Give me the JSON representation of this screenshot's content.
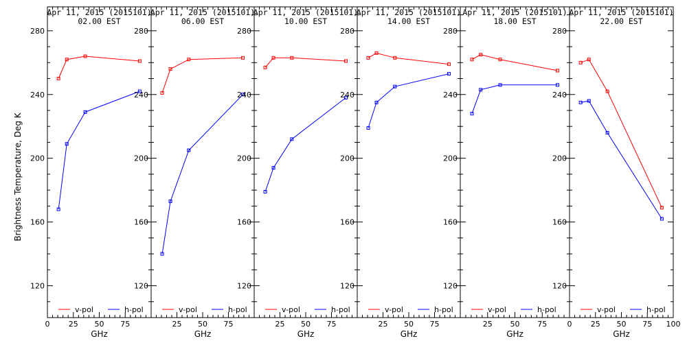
{
  "figure": {
    "ylabel": "Brightness Temperature, Deg K"
  },
  "chart_data": [
    {
      "type": "line",
      "title": "Apr 11, 2015 (2015101)",
      "subtitle": "02.00 EST",
      "xlabel": "GHz",
      "ylabel": "Brightness Temperature, Deg K",
      "xlim": [
        0,
        100
      ],
      "ylim": [
        100,
        295
      ],
      "x_ticks": [
        0,
        25,
        50,
        75
      ],
      "y_ticks": [
        120,
        160,
        200,
        240,
        280
      ],
      "legend": "bottom",
      "series": [
        {
          "name": "v-pol",
          "color": "#ff0000",
          "x": [
            10.7,
            18.7,
            36.5,
            89.0
          ],
          "y": [
            250,
            262,
            264,
            261
          ]
        },
        {
          "name": "h-pol",
          "color": "#0000ff",
          "x": [
            10.7,
            18.7,
            36.5,
            89.0
          ],
          "y": [
            168,
            209,
            229,
            242
          ]
        }
      ]
    },
    {
      "type": "line",
      "title": "Apr 11, 2015 (2015101)",
      "subtitle": "06.00 EST",
      "xlabel": "GHz",
      "ylabel": "",
      "xlim": [
        0,
        100
      ],
      "ylim": [
        100,
        295
      ],
      "x_ticks": [
        25,
        50,
        75
      ],
      "y_ticks": [
        120,
        160,
        200,
        240,
        280
      ],
      "legend": "bottom",
      "series": [
        {
          "name": "v-pol",
          "color": "#ff0000",
          "x": [
            10.7,
            18.7,
            36.5,
            89.0
          ],
          "y": [
            241,
            256,
            262,
            263
          ]
        },
        {
          "name": "h-pol",
          "color": "#0000ff",
          "x": [
            10.7,
            18.7,
            36.5,
            89.0
          ],
          "y": [
            140,
            173,
            205,
            240
          ]
        }
      ]
    },
    {
      "type": "line",
      "title": "Apr 11, 2015 (2015101)",
      "subtitle": "10.00 EST",
      "xlabel": "GHz",
      "ylabel": "",
      "xlim": [
        0,
        100
      ],
      "ylim": [
        100,
        295
      ],
      "x_ticks": [
        25,
        50,
        75
      ],
      "y_ticks": [
        120,
        160,
        200,
        240,
        280
      ],
      "legend": "bottom",
      "series": [
        {
          "name": "v-pol",
          "color": "#ff0000",
          "x": [
            10.7,
            18.7,
            36.5,
            89.0
          ],
          "y": [
            257,
            263,
            263,
            261
          ]
        },
        {
          "name": "h-pol",
          "color": "#0000ff",
          "x": [
            10.7,
            18.7,
            36.5,
            89.0
          ],
          "y": [
            179,
            194,
            212,
            238
          ]
        }
      ]
    },
    {
      "type": "line",
      "title": "Apr 11, 2015 (2015101)",
      "subtitle": "14.00 EST",
      "xlabel": "GHz",
      "ylabel": "",
      "xlim": [
        0,
        100
      ],
      "ylim": [
        100,
        295
      ],
      "x_ticks": [
        25,
        50,
        75
      ],
      "y_ticks": [
        120,
        160,
        200,
        240,
        280
      ],
      "legend": "bottom",
      "series": [
        {
          "name": "v-pol",
          "color": "#ff0000",
          "x": [
            10.7,
            18.7,
            36.5,
            89.0
          ],
          "y": [
            263,
            266,
            263,
            259
          ]
        },
        {
          "name": "h-pol",
          "color": "#0000ff",
          "x": [
            10.7,
            18.7,
            36.5,
            89.0
          ],
          "y": [
            219,
            235,
            245,
            253
          ]
        }
      ]
    },
    {
      "type": "line",
      "title": "Apr 11, 2015 (2015101)",
      "subtitle": "18.00 EST",
      "xlabel": "GHz",
      "ylabel": "",
      "xlim": [
        0,
        100
      ],
      "ylim": [
        100,
        295
      ],
      "x_ticks": [
        25,
        50,
        75
      ],
      "y_ticks": [
        120,
        160,
        200,
        240,
        280
      ],
      "legend": "bottom",
      "series": [
        {
          "name": "v-pol",
          "color": "#ff0000",
          "x": [
            10.7,
            18.7,
            36.5,
            89.0
          ],
          "y": [
            262,
            265,
            262,
            255
          ]
        },
        {
          "name": "h-pol",
          "color": "#0000ff",
          "x": [
            10.7,
            18.7,
            36.5,
            89.0
          ],
          "y": [
            228,
            243,
            246,
            246
          ]
        }
      ]
    },
    {
      "type": "line",
      "title": "Apr 11, 2015 (2015101)",
      "subtitle": "22.00 EST",
      "xlabel": "GHz",
      "ylabel": "",
      "xlim": [
        0,
        100
      ],
      "ylim": [
        100,
        295
      ],
      "x_ticks": [
        0,
        25,
        50,
        75,
        100
      ],
      "y_ticks": [
        120,
        160,
        200,
        240,
        280
      ],
      "legend": "bottom",
      "series": [
        {
          "name": "v-pol",
          "color": "#ff0000",
          "x": [
            10.7,
            18.7,
            36.5,
            89.0
          ],
          "y": [
            260,
            262,
            242,
            169
          ]
        },
        {
          "name": "h-pol",
          "color": "#0000ff",
          "x": [
            10.7,
            18.7,
            36.5,
            89.0
          ],
          "y": [
            235,
            236,
            216,
            162
          ]
        }
      ]
    }
  ]
}
